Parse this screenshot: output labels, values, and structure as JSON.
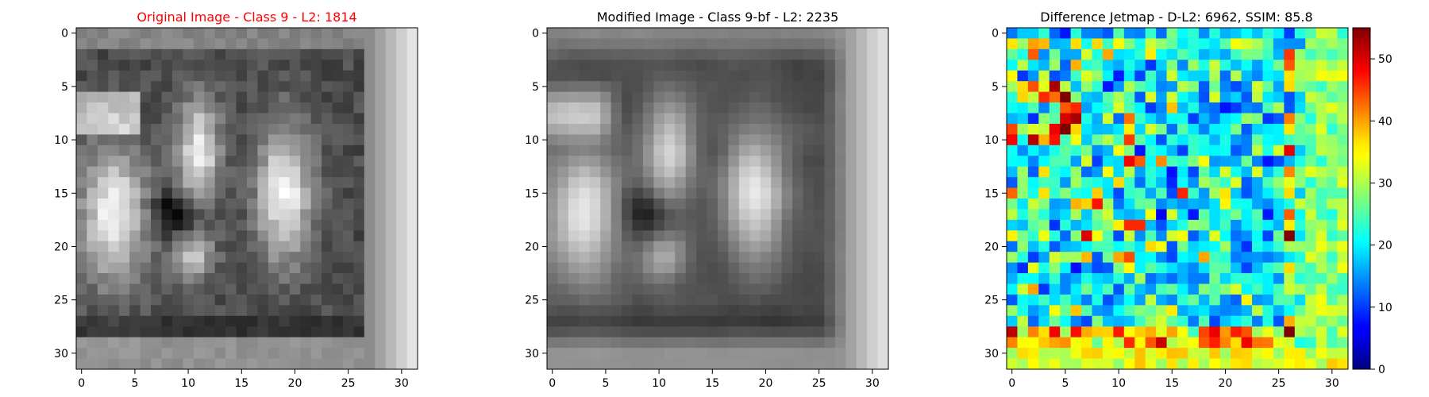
{
  "colors": {
    "title_highlight": "#ff0000",
    "title_default": "#000000",
    "axis": "#000000",
    "background": "#ffffff"
  },
  "chart_data": [
    {
      "type": "heatmap",
      "title": "Original Image - Class 9 - L2: 1814",
      "title_color": "#ff0000",
      "colormap": "gray",
      "grid": false,
      "grid_size": [
        32,
        32
      ],
      "xlim": [
        -0.5,
        31.5
      ],
      "ylim": [
        31.5,
        -0.5
      ],
      "x_ticks": [
        0,
        5,
        10,
        15,
        20,
        25,
        30
      ],
      "y_ticks": [
        0,
        5,
        10,
        15,
        20,
        25,
        30
      ],
      "value_range": [
        0,
        255
      ]
    },
    {
      "type": "heatmap",
      "title": "Modified Image - Class 9-bf - L2: 2235",
      "title_color": "#000000",
      "colormap": "gray",
      "grid": false,
      "grid_size": [
        32,
        32
      ],
      "xlim": [
        -0.5,
        31.5
      ],
      "ylim": [
        31.5,
        -0.5
      ],
      "x_ticks": [
        0,
        5,
        10,
        15,
        20,
        25,
        30
      ],
      "y_ticks": [
        0,
        5,
        10,
        15,
        20,
        25,
        30
      ],
      "value_range": [
        0,
        255
      ]
    },
    {
      "type": "heatmap",
      "title": "Difference Jetmap - D-L2: 6962, SSIM: 85.8",
      "title_color": "#000000",
      "colormap": "jet",
      "grid": false,
      "grid_size": [
        32,
        32
      ],
      "xlim": [
        -0.5,
        31.5
      ],
      "ylim": [
        31.5,
        -0.5
      ],
      "x_ticks": [
        0,
        5,
        10,
        15,
        20,
        25,
        30
      ],
      "y_ticks": [
        0,
        5,
        10,
        15,
        20,
        25,
        30
      ],
      "value_range": [
        0,
        55
      ],
      "colorbar": {
        "range": [
          0,
          55
        ],
        "ticks": [
          0,
          10,
          20,
          30,
          40,
          50
        ]
      }
    }
  ]
}
